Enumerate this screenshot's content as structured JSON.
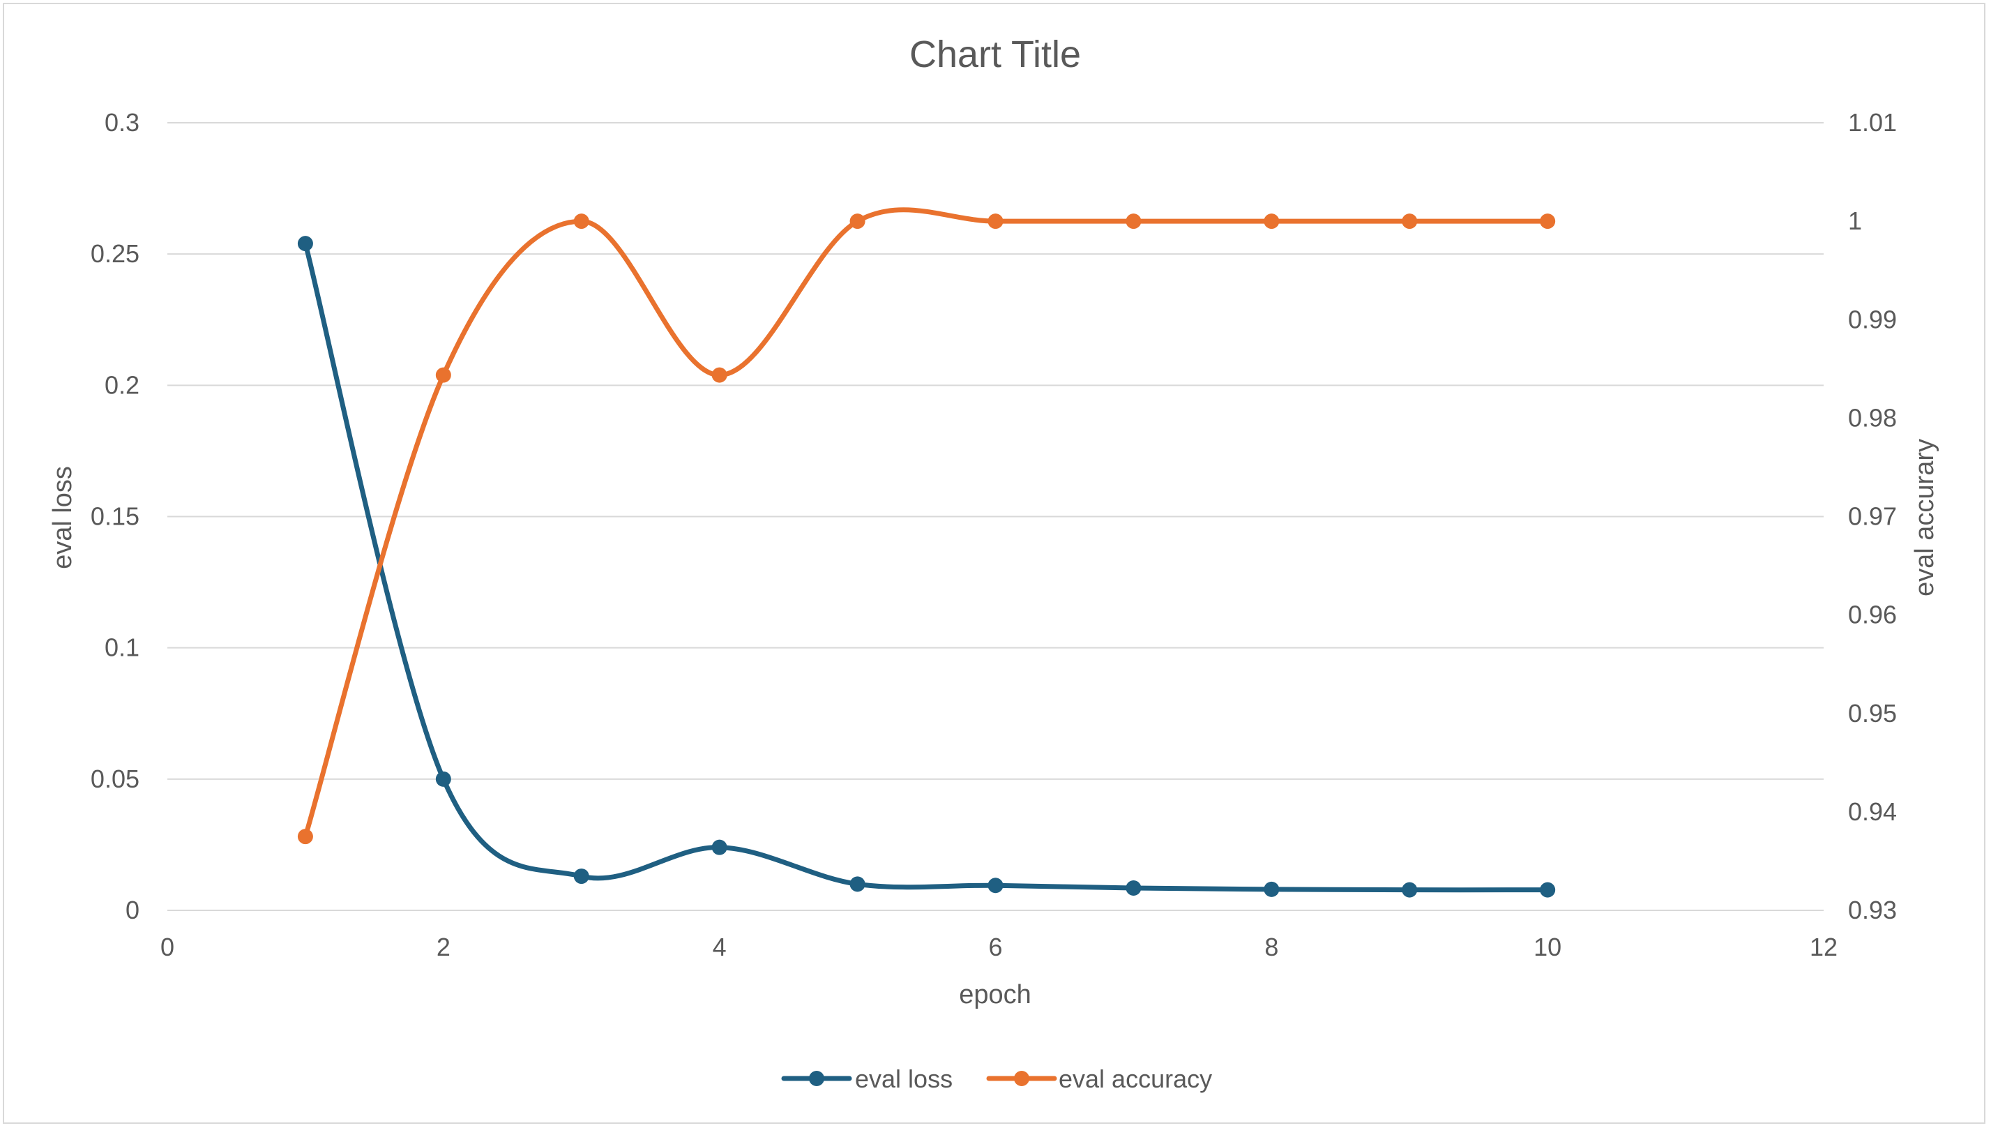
{
  "chart_data": {
    "type": "line",
    "title": "Chart Title",
    "xlabel": "epoch",
    "ylabel": "eval loss",
    "y2label": "eval accurary",
    "xlim": [
      0,
      12
    ],
    "ylim": [
      0,
      0.3
    ],
    "y2lim": [
      0.93,
      1.01
    ],
    "x_ticks": [
      "0",
      "2",
      "4",
      "6",
      "8",
      "10",
      "12"
    ],
    "y_ticks": [
      "0",
      "0.05",
      "0.1",
      "0.15",
      "0.2",
      "0.25",
      "0.3"
    ],
    "y2_ticks": [
      "0.93",
      "0.94",
      "0.95",
      "0.96",
      "0.97",
      "0.98",
      "0.99",
      "1",
      "1.01"
    ],
    "grid": true,
    "smoothed": true,
    "legend_position": "bottom",
    "x": [
      1,
      2,
      3,
      4,
      5,
      6,
      7,
      8,
      9,
      10
    ],
    "series": [
      {
        "name": "eval loss",
        "axis": "left",
        "color": "#1f5f82",
        "values": [
          0.254,
          0.05,
          0.013,
          0.024,
          0.01,
          0.0095,
          0.0085,
          0.008,
          0.0078,
          0.0078
        ]
      },
      {
        "name": "eval accuracy",
        "axis": "right",
        "color": "#e9722e",
        "values": [
          0.9375,
          0.984375,
          1.0,
          0.984375,
          1.0,
          1.0,
          1.0,
          1.0,
          1.0,
          1.0
        ]
      }
    ]
  }
}
